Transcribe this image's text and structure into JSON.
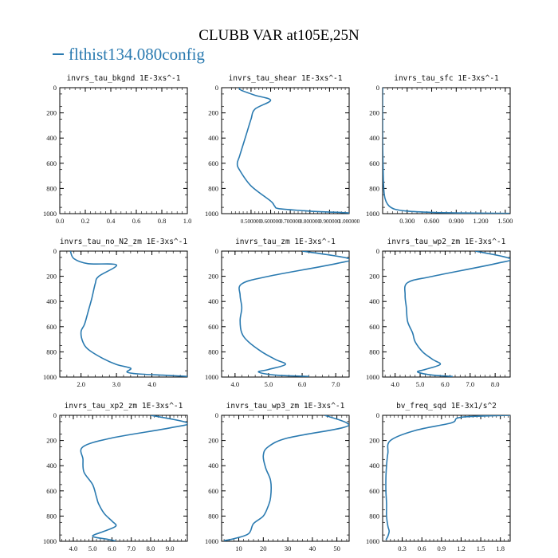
{
  "figure": {
    "title": "CLUBB VAR at105E,25N",
    "legend_label": "flthist134.080config",
    "line_color": "#2a7ab0"
  },
  "chart_data": [
    {
      "type": "line",
      "title": "invrs_tau_bkgnd",
      "units": "1E-3xs^-1",
      "xlim": [
        0.0,
        1.0
      ],
      "ylim": [
        1000,
        0
      ],
      "xticks": [
        "0.0",
        "0.2",
        "0.4",
        "0.6",
        "0.8",
        "1.0"
      ],
      "yticks": [
        "0",
        "200",
        "400",
        "600",
        "800",
        "1000"
      ],
      "series": [
        {
          "x": [],
          "y": []
        }
      ]
    },
    {
      "type": "line",
      "title": "invrs_tau_shear",
      "units": "1E-3xs^-1",
      "xlim": [
        0.35,
        1.0
      ],
      "ylim": [
        1000,
        0
      ],
      "xticks": [
        "0.500000",
        "0.600000",
        "0.700000",
        "0.800000",
        "0.900000",
        "1.000000"
      ],
      "yticks": [
        "0",
        "200",
        "400",
        "600",
        "800",
        "1000"
      ],
      "series": [
        {
          "x": [
            0.44,
            0.45,
            0.52,
            0.6,
            0.52,
            0.5,
            0.48,
            0.46,
            0.44,
            0.43,
            0.44,
            0.5,
            0.6,
            0.62,
            0.64,
            0.75,
            0.85,
            0.95,
            1.0
          ],
          "y": [
            0,
            20,
            60,
            100,
            170,
            250,
            350,
            450,
            550,
            600,
            650,
            780,
            900,
            940,
            960,
            975,
            985,
            990,
            995
          ]
        }
      ]
    },
    {
      "type": "line",
      "title": "invrs_tau_sfc",
      "units": "1E-3xs^-1",
      "xlim": [
        0.0,
        1.56
      ],
      "ylim": [
        1000,
        0
      ],
      "xticks": [
        "0.300",
        "0.600",
        "0.900",
        "1.200",
        "1.500"
      ],
      "yticks": [
        "0",
        "200",
        "400",
        "600",
        "800",
        "1000"
      ],
      "series": [
        {
          "x": [
            0.0,
            0.0,
            0.005,
            0.01,
            0.02,
            0.04,
            0.08,
            0.15,
            0.3,
            0.6,
            1.0,
            1.55
          ],
          "y": [
            0,
            400,
            600,
            750,
            850,
            900,
            940,
            965,
            980,
            990,
            995,
            998
          ]
        }
      ]
    },
    {
      "type": "line",
      "title": "invrs_tau_no_N2_zm",
      "units": "1E-3xs^-1",
      "xlim": [
        1.4,
        5.0
      ],
      "ylim": [
        1000,
        0
      ],
      "xticks": [
        "2.0",
        "3.0",
        "4.0"
      ],
      "yticks": [
        "0",
        "200",
        "400",
        "600",
        "800",
        "1000"
      ],
      "series": [
        {
          "x": [
            1.7,
            1.8,
            2.2,
            3.0,
            2.5,
            2.4,
            2.3,
            2.2,
            2.1,
            2.0,
            2.05,
            2.2,
            2.6,
            3.0,
            3.4,
            3.3,
            3.6,
            4.3,
            5.0
          ],
          "y": [
            0,
            60,
            100,
            110,
            200,
            260,
            380,
            480,
            580,
            640,
            720,
            780,
            850,
            900,
            930,
            960,
            975,
            985,
            995
          ]
        }
      ]
    },
    {
      "type": "line",
      "title": "invrs_tau_zm",
      "units": "1E-3xs^-1",
      "xlim": [
        3.6,
        7.4
      ],
      "ylim": [
        1000,
        0
      ],
      "xticks": [
        "4.0",
        "5.0",
        "6.0",
        "7.0"
      ],
      "yticks": [
        "0",
        "200",
        "400",
        "600",
        "800",
        "1000"
      ],
      "series": [
        {
          "x": [
            6.0,
            7.4,
            7.0,
            5.0,
            4.2,
            4.15,
            4.2,
            4.15,
            4.2,
            4.4,
            4.8,
            5.2,
            5.5,
            5.0,
            4.7,
            5.2,
            6.2
          ],
          "y": [
            0,
            60,
            100,
            200,
            260,
            350,
            450,
            550,
            650,
            720,
            800,
            860,
            900,
            940,
            960,
            985,
            995
          ]
        }
      ]
    },
    {
      "type": "line",
      "title": "invrs_tau_wp2_zm",
      "units": "1E-3xs^-1",
      "xlim": [
        3.5,
        8.6
      ],
      "ylim": [
        1000,
        0
      ],
      "xticks": [
        "4.0",
        "5.0",
        "6.0",
        "7.0",
        "8.0"
      ],
      "yticks": [
        "0",
        "200",
        "400",
        "600",
        "800",
        "1000"
      ],
      "series": [
        {
          "x": [
            7.2,
            8.6,
            8.0,
            5.5,
            4.5,
            4.4,
            4.45,
            4.5,
            4.7,
            4.8,
            5.1,
            5.5,
            5.8,
            5.2,
            4.9,
            5.5,
            6.3
          ],
          "y": [
            0,
            60,
            100,
            200,
            250,
            350,
            450,
            560,
            650,
            720,
            800,
            860,
            900,
            940,
            960,
            985,
            995
          ]
        }
      ]
    },
    {
      "type": "line",
      "title": "invrs_tau_xp2_zm",
      "units": "1E-3xs^-1",
      "xlim": [
        3.3,
        9.9
      ],
      "ylim": [
        1000,
        0
      ],
      "xticks": [
        "4.0",
        "5.0",
        "6.0",
        "7.0",
        "8.0",
        "9.0"
      ],
      "yticks": [
        "0",
        "200",
        "400",
        "600",
        "800",
        "1000"
      ],
      "series": [
        {
          "x": [
            8.0,
            9.9,
            9.0,
            6.0,
            4.5,
            4.5,
            4.55,
            5.0,
            5.2,
            5.3,
            5.6,
            6.0,
            6.2,
            5.6,
            5.0,
            5.8,
            6.2
          ],
          "y": [
            0,
            60,
            100,
            180,
            250,
            350,
            450,
            550,
            650,
            700,
            780,
            840,
            880,
            920,
            960,
            985,
            998
          ]
        }
      ]
    },
    {
      "type": "line",
      "title": "invrs_tau_wp3_zm",
      "units": "1E-3xs^-1",
      "xlim": [
        3,
        55
      ],
      "ylim": [
        1000,
        0
      ],
      "xticks": [
        "10",
        "20",
        "30",
        "40",
        "50"
      ],
      "yticks": [
        "0",
        "200",
        "400",
        "600",
        "800",
        "1000"
      ],
      "series": [
        {
          "x": [
            45,
            54,
            52,
            30,
            22,
            20,
            21,
            23,
            23,
            22,
            20,
            16,
            14,
            8,
            4
          ],
          "y": [
            0,
            60,
            100,
            180,
            250,
            320,
            420,
            520,
            650,
            720,
            800,
            860,
            940,
            980,
            995
          ]
        }
      ]
    },
    {
      "type": "line",
      "title": "bv_freq_sqd",
      "units": "1E-3x1/s^2",
      "xlim": [
        0.0,
        1.95
      ],
      "ylim": [
        1000,
        0
      ],
      "xticks": [
        "0.3",
        "0.6",
        "0.9",
        "1.2",
        "1.5",
        "1.8"
      ],
      "yticks": [
        "0",
        "200",
        "400",
        "600",
        "800",
        "1000"
      ],
      "series": [
        {
          "x": [
            1.95,
            1.2,
            1.05,
            0.5,
            0.12,
            0.08,
            0.06,
            0.05,
            0.05,
            0.06,
            0.06,
            0.08,
            0.1,
            0.08,
            0.05
          ],
          "y": [
            0,
            15,
            60,
            120,
            200,
            300,
            400,
            500,
            600,
            700,
            800,
            880,
            920,
            960,
            990
          ]
        }
      ]
    }
  ]
}
